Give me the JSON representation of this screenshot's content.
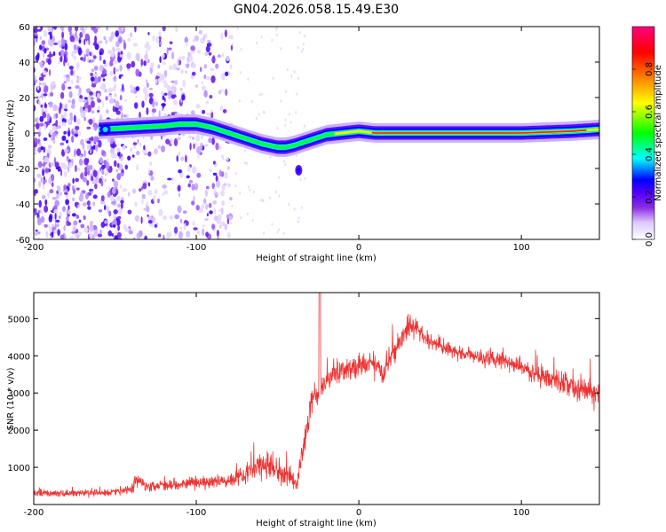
{
  "figure_title": "GN04.2026.058.15.49.E30",
  "chart_data": [
    {
      "type": "heatmap",
      "title": "GN04.2026.058.15.49.E30",
      "xlabel": "Height of straight line (km)",
      "ylabel": "Frequency (Hz)",
      "xlim": [
        -200,
        148
      ],
      "ylim": [
        -60,
        60
      ],
      "xticks": [
        -200,
        -100,
        0,
        100
      ],
      "yticks": [
        -60,
        -40,
        -20,
        0,
        20,
        40,
        60
      ],
      "colorbar": {
        "label": "Normalized spectral amplitude",
        "range": [
          0.0,
          1.0
        ],
        "ticks": [
          "0.0",
          "0.2",
          "0.4",
          "0.6",
          "0.8"
        ],
        "colors": [
          "#ffffff",
          "#dcc7ff",
          "#8a2be2",
          "#5000ff",
          "#0000ff",
          "#00ffff",
          "#00ff00",
          "#ffff00",
          "#ff8000",
          "#ff0000",
          "#ff0080"
        ]
      },
      "ridge": {
        "x": [
          -160,
          -150,
          -140,
          -130,
          -120,
          -110,
          -100,
          -90,
          -80,
          -70,
          -60,
          -50,
          -45,
          -40,
          -30,
          -20,
          -10,
          0,
          10,
          50,
          100,
          130,
          148
        ],
        "y": [
          2,
          2.5,
          3,
          3.5,
          4,
          5,
          5,
          3,
          0,
          -3,
          -6,
          -8,
          -8,
          -7,
          -4,
          -1,
          0,
          1,
          0,
          0,
          0,
          1,
          2
        ]
      },
      "noise_region_x": [
        -200,
        -78
      ],
      "blob": {
        "x": -37,
        "y": -21
      }
    },
    {
      "type": "line",
      "xlabel": "Height of straight line (km)",
      "ylabel": "SNR (10 * v/v)",
      "xlim": [
        -200,
        148
      ],
      "ylim": [
        0,
        5700
      ],
      "xticks": [
        -200,
        -100,
        0,
        100
      ],
      "yticks": [
        1000,
        2000,
        3000,
        4000,
        5000
      ],
      "color": "#ee3333",
      "envelope": {
        "x": [
          -200,
          -180,
          -160,
          -150,
          -140,
          -137,
          -130,
          -110,
          -90,
          -80,
          -70,
          -62,
          -58,
          -50,
          -42,
          -38,
          -34,
          -30,
          -28,
          -25,
          -20,
          -15,
          -10,
          -5,
          0,
          5,
          10,
          15,
          20,
          25,
          30,
          35,
          40,
          45,
          50,
          60,
          70,
          80,
          90,
          100,
          110,
          120,
          130,
          140,
          148
        ],
        "mean": [
          300,
          300,
          320,
          340,
          420,
          650,
          500,
          550,
          600,
          650,
          850,
          1000,
          1100,
          900,
          700,
          600,
          1500,
          2600,
          2900,
          3000,
          3300,
          3500,
          3600,
          3600,
          3700,
          3750,
          3800,
          3500,
          4000,
          4400,
          4700,
          4800,
          4500,
          4350,
          4250,
          4100,
          4000,
          3950,
          3850,
          3700,
          3500,
          3350,
          3200,
          3050,
          3000
        ],
        "spread": [
          120,
          120,
          130,
          140,
          160,
          300,
          180,
          200,
          220,
          230,
          350,
          500,
          550,
          450,
          300,
          280,
          500,
          600,
          450,
          400,
          420,
          450,
          450,
          420,
          400,
          380,
          380,
          400,
          420,
          380,
          330,
          300,
          280,
          260,
          250,
          250,
          260,
          270,
          290,
          320,
          360,
          400,
          430,
          470,
          500
        ]
      },
      "peak": {
        "x": -24,
        "y": 5700
      }
    }
  ]
}
